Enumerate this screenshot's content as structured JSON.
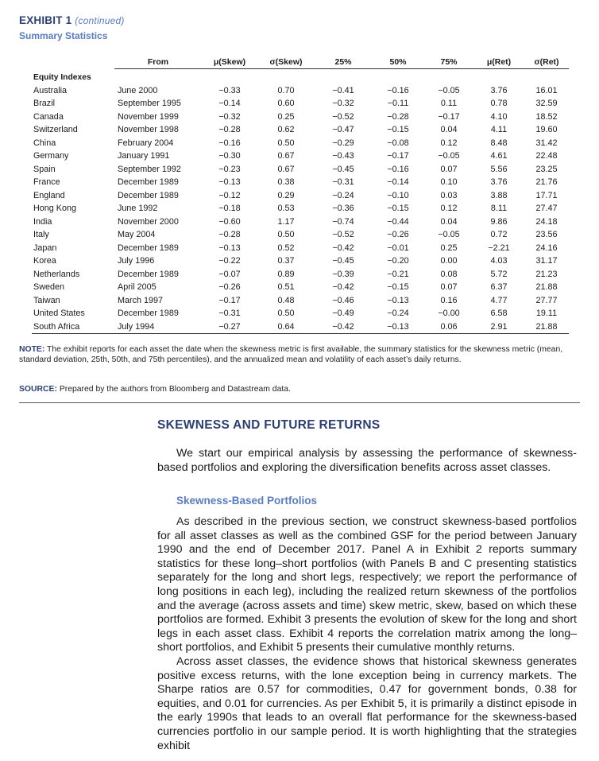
{
  "exhibit": {
    "title": "EXHIBIT 1",
    "continued": "(continued)",
    "subtitle": "Summary Statistics"
  },
  "table": {
    "headers": [
      "From",
      "μ(Skew)",
      "σ(Skew)",
      "25%",
      "50%",
      "75%",
      "μ(Ret)",
      "σ(Ret)"
    ],
    "group_label": "Equity Indexes",
    "rows": [
      [
        "Australia",
        "June 2000",
        "−0.33",
        "0.70",
        "−0.41",
        "−0.16",
        "−0.05",
        "3.76",
        "16.01"
      ],
      [
        "Brazil",
        "September 1995",
        "−0.14",
        "0.60",
        "−0.32",
        "−0.11",
        "0.11",
        "0.78",
        "32.59"
      ],
      [
        "Canada",
        "November 1999",
        "−0.32",
        "0.25",
        "−0.52",
        "−0.28",
        "−0.17",
        "4.10",
        "18.52"
      ],
      [
        "Switzerland",
        "November 1998",
        "−0.28",
        "0.62",
        "−0.47",
        "−0.15",
        "0.04",
        "4.11",
        "19.60"
      ],
      [
        "China",
        "February 2004",
        "−0.16",
        "0.50",
        "−0.29",
        "−0.08",
        "0.12",
        "8.48",
        "31.42"
      ],
      [
        "Germany",
        "January 1991",
        "−0.30",
        "0.67",
        "−0.43",
        "−0.17",
        "−0.05",
        "4.61",
        "22.48"
      ],
      [
        "Spain",
        "September 1992",
        "−0.23",
        "0.67",
        "−0.45",
        "−0.16",
        "0.07",
        "5.56",
        "23.25"
      ],
      [
        "France",
        "December 1989",
        "−0.13",
        "0.38",
        "−0.31",
        "−0.14",
        "0.10",
        "3.76",
        "21.76"
      ],
      [
        "England",
        "December 1989",
        "−0.12",
        "0.29",
        "−0.24",
        "−0.10",
        "0.03",
        "3.88",
        "17.71"
      ],
      [
        "Hong Kong",
        "June 1992",
        "−0.18",
        "0.53",
        "−0.36",
        "−0.15",
        "0.12",
        "8.11",
        "27.47"
      ],
      [
        "India",
        "November 2000",
        "−0.60",
        "1.17",
        "−0.74",
        "−0.44",
        "0.04",
        "9.86",
        "24.18"
      ],
      [
        "Italy",
        "May 2004",
        "−0.28",
        "0.50",
        "−0.52",
        "−0.26",
        "−0.05",
        "0.72",
        "23.56"
      ],
      [
        "Japan",
        "December 1989",
        "−0.13",
        "0.52",
        "−0.42",
        "−0.01",
        "0.25",
        "−2.21",
        "24.16"
      ],
      [
        "Korea",
        "July 1996",
        "−0.22",
        "0.37",
        "−0.45",
        "−0.20",
        "0.00",
        "4.03",
        "31.17"
      ],
      [
        "Netherlands",
        "December 1989",
        "−0.07",
        "0.89",
        "−0.39",
        "−0.21",
        "0.08",
        "5.72",
        "21.23"
      ],
      [
        "Sweden",
        "April 2005",
        "−0.26",
        "0.51",
        "−0.42",
        "−0.15",
        "0.07",
        "6.37",
        "21.88"
      ],
      [
        "Taiwan",
        "March 1997",
        "−0.17",
        "0.48",
        "−0.46",
        "−0.13",
        "0.16",
        "4.77",
        "27.77"
      ],
      [
        "United States",
        "December 1989",
        "−0.31",
        "0.50",
        "−0.49",
        "−0.24",
        "−0.00",
        "6.58",
        "19.11"
      ],
      [
        "South Africa",
        "July 1994",
        "−0.27",
        "0.64",
        "−0.42",
        "−0.13",
        "0.06",
        "2.91",
        "21.88"
      ]
    ]
  },
  "note": {
    "label": "NOTE:",
    "text": "The exhibit reports for each asset the date when the skewness metric is first available, the summary statistics for the skewness metric (mean, standard deviation, 25th, 50th, and 75th percentiles), and the annualized mean and volatility of each asset’s daily returns."
  },
  "source": {
    "label": "SOURCE:",
    "text": "Prepared by the authors from Bloomberg and Datastream data."
  },
  "article": {
    "section_title": "SKEWNESS AND FUTURE RETURNS",
    "intro": "We start our empirical analysis by assessing the performance of skewness-based portfolios and exploring the diversification benefits across asset classes.",
    "subsection_title": "Skewness-Based Portfolios",
    "para1": "As described in the previous section, we construct skewness-based portfolios for all asset classes as well as the combined GSF for the period between January 1990 and the end of December 2017. Panel A in Exhibit 2 reports summary statistics for these long–short portfolios (with Panels B and C presenting statistics separately for the long and short legs, respectively; we report the performance of long positions in each leg), including the realized return skewness of the portfolios and the average (across assets and time) skew metric, skew, based on which these portfolios are formed. Exhibit 3 presents the evolution of skew for the long and short legs in each asset class. Exhibit 4 reports the correlation matrix among the long–short portfolios, and Exhibit 5 presents their cumulative monthly returns.",
    "para2": "Across asset classes, the evidence shows that historical skewness generates positive excess returns, with the lone exception being in currency markets. The Sharpe ratios are 0.57 for commodities, 0.47 for government bonds, 0.38 for equities, and 0.01 for currencies. As per Exhibit 5, it is primarily a distinct episode in the early 1990s that leads to an overall flat performance for the skewness-based currencies portfolio in our sample period. It is worth highlighting that the strategies exhibit"
  }
}
